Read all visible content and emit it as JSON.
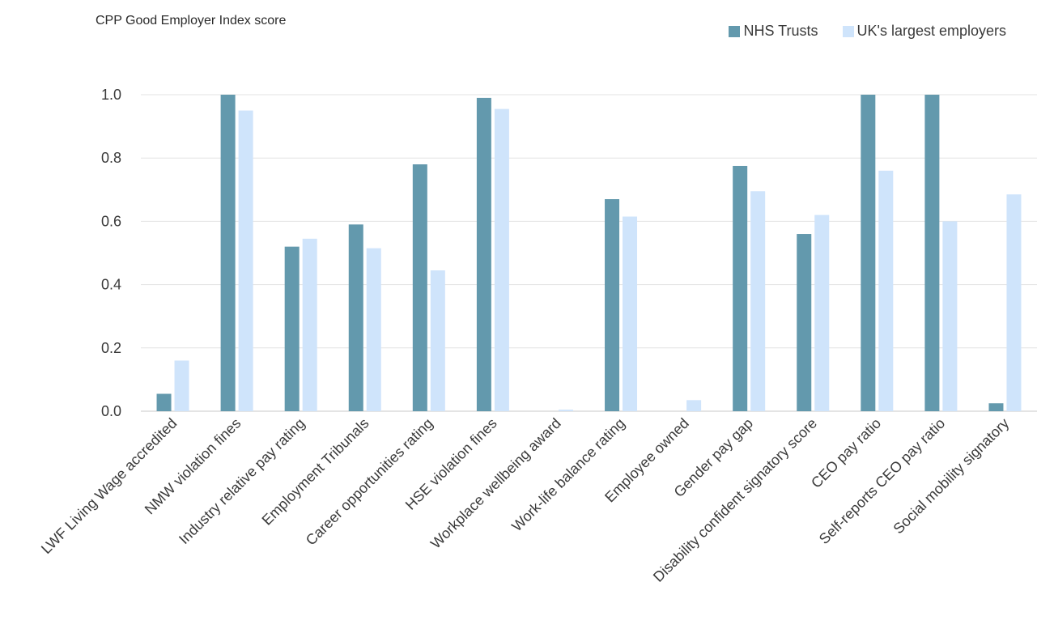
{
  "chart_data": {
    "type": "bar",
    "title": "",
    "ylabel": "CPP Good Employer Index score",
    "xlabel": "",
    "ylim": [
      0,
      1.0
    ],
    "yticks": [
      "0.0",
      "0.2",
      "0.4",
      "0.6",
      "0.8",
      "1.0"
    ],
    "grid": true,
    "legend_position": "top-right",
    "categories": [
      "LWF Living Wage accredited",
      "NMW violation fines",
      "Industry relative pay rating",
      "Employment Tribunals",
      "Career opportunities rating",
      "HSE violation fines",
      "Workplace wellbeing award",
      "Work-life balance rating",
      "Employee owned",
      "Gender pay gap",
      "Disability confident signatory score",
      "CEO pay ratio",
      "Self-reports CEO pay ratio",
      "Social mobility signatory"
    ],
    "series": [
      {
        "name": "NHS Trusts",
        "color": "#6399ad",
        "values": [
          0.055,
          1.0,
          0.52,
          0.59,
          0.78,
          0.99,
          0.0,
          0.67,
          0.0,
          0.775,
          0.56,
          1.0,
          1.0,
          0.025
        ]
      },
      {
        "name": "UK's largest employers",
        "color": "#cfe4fb",
        "values": [
          0.16,
          0.95,
          0.545,
          0.515,
          0.445,
          0.955,
          0.005,
          0.615,
          0.035,
          0.695,
          0.62,
          0.76,
          0.6,
          0.685
        ]
      }
    ]
  }
}
